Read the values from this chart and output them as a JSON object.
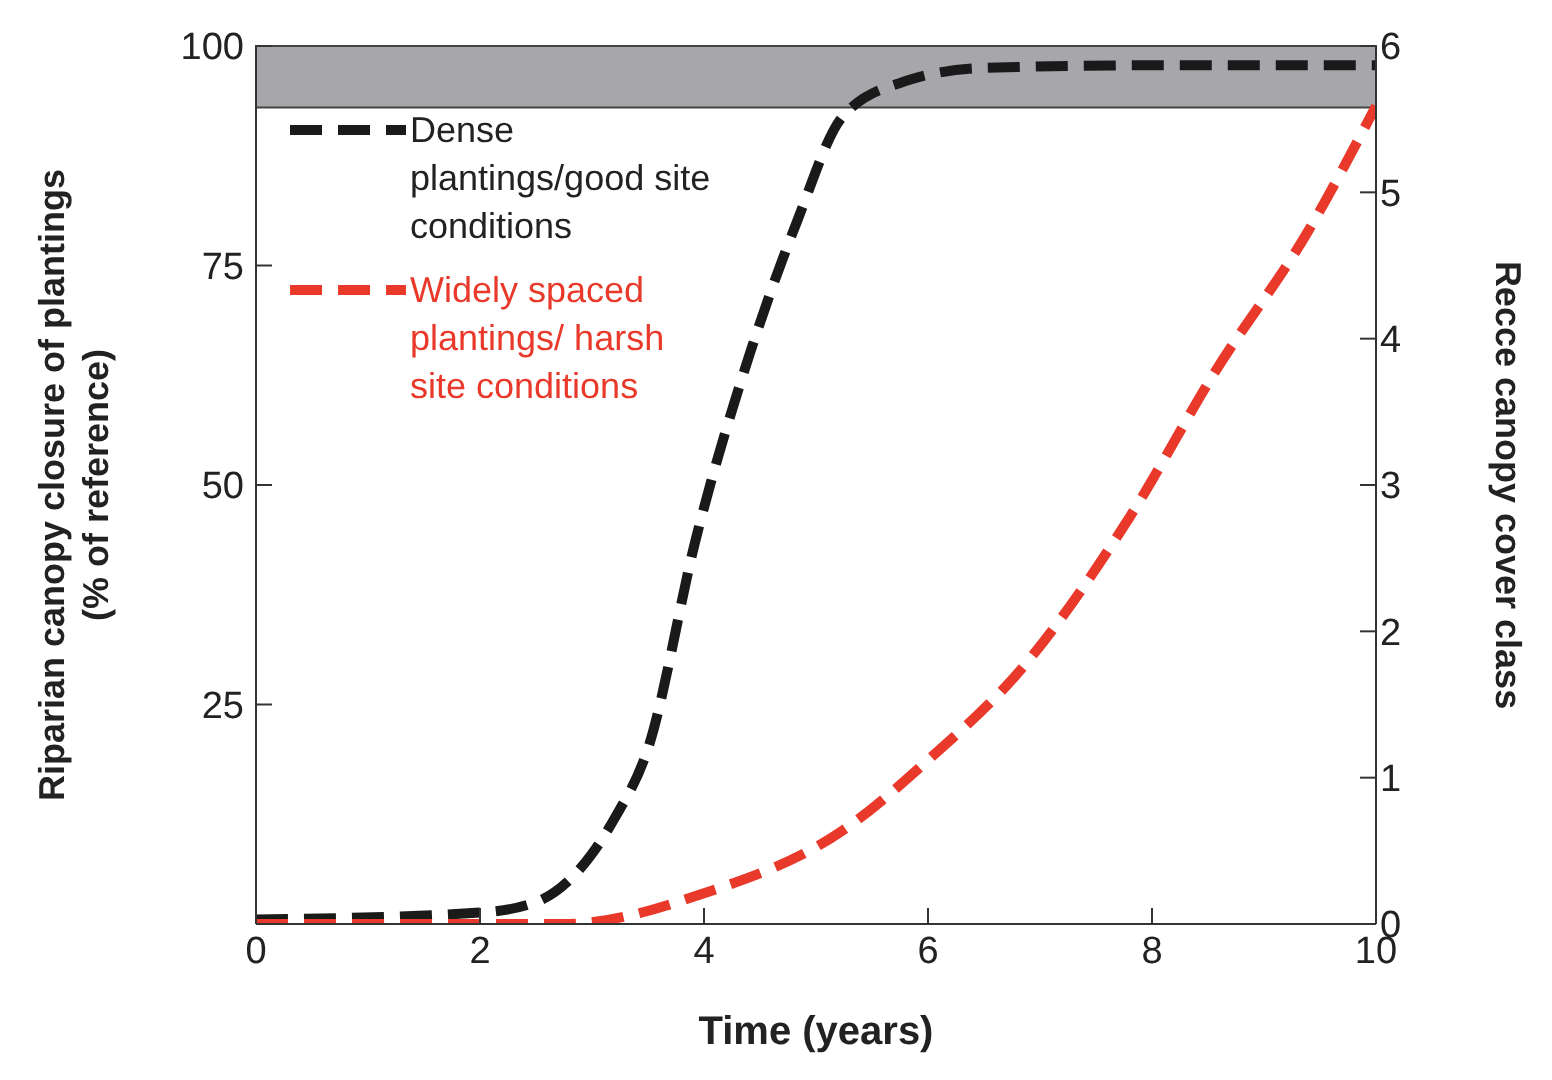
{
  "chart_data": {
    "type": "line",
    "xlabel": "Time (years)",
    "ylabel": "Riparian canopy closure of plantings\n(% of reference)",
    "y2label": "Recce canopy cover class",
    "xlim": [
      0,
      10
    ],
    "xticks": [
      0,
      2,
      4,
      6,
      8,
      10
    ],
    "ylim": [
      0,
      100
    ],
    "yticks": [
      25,
      50,
      75,
      100
    ],
    "y2lim": [
      0,
      6
    ],
    "y2ticks": [
      0,
      1,
      2,
      3,
      4,
      5,
      6
    ],
    "line_style": "dashed",
    "legend": "top left",
    "bands": [
      {
        "axis": "y",
        "from": 93,
        "to": 100,
        "color": "#a7a7ab"
      }
    ],
    "series": [
      {
        "name": "Dense plantings/good site conditions",
        "color": "#1a1a1a",
        "x": [
          0,
          2,
          2.5,
          3,
          3.2,
          3.5,
          3.93,
          4.41,
          4.83,
          5.24,
          5.8,
          6.5,
          8,
          10
        ],
        "values": [
          0.5,
          1.3,
          2.5,
          8,
          12,
          20,
          44,
          65,
          80,
          92,
          96,
          97.5,
          97.8,
          97.8
        ]
      },
      {
        "name": "Widely spaced plantings/ harsh site conditions",
        "color": "#e8392a",
        "axis": "y2",
        "x": [
          0,
          2,
          2.75,
          4,
          5.24,
          6,
          6.83,
          7.8,
          8.56,
          9.39,
          10
        ],
        "values": [
          0,
          0,
          0,
          0.21,
          0.64,
          1.12,
          1.74,
          2.78,
          3.77,
          4.73,
          5.59
        ]
      }
    ]
  }
}
